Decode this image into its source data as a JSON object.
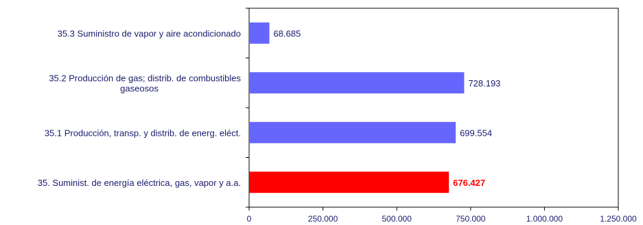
{
  "chart_data": {
    "type": "bar",
    "orientation": "horizontal",
    "categories": [
      "35.3 Suministro de vapor y aire acondicionado",
      "35.2 Producción de gas; distrib. de combustibles gaseosos",
      "35.1 Producción, transp. y distrib. de energ. eléct.",
      "35. Suminist. de energía eléctrica, gas, vapor y a.a."
    ],
    "category_lines": [
      [
        "35.3 Suministro de vapor y aire acondicionado"
      ],
      [
        "35.2 Producción de gas; distrib. de combustibles",
        "gaseosos"
      ],
      [
        "35.1 Producción, transp. y distrib. de energ. eléct."
      ],
      [
        "35. Suminist. de energía eléctrica, gas, vapor y a.a."
      ]
    ],
    "values": [
      68685,
      728193,
      699554,
      676427
    ],
    "value_labels": [
      "68.685",
      "728.193",
      "699.554",
      "676.427"
    ],
    "colors": [
      "#6666ff",
      "#6666ff",
      "#6666ff",
      "#ff0000"
    ],
    "highlight_index": 3,
    "xlim": [
      0,
      1250000
    ],
    "xticks": [
      0,
      250000,
      500000,
      750000,
      1000000,
      1250000
    ],
    "xtick_labels": [
      "0",
      "250.000",
      "500.000",
      "750.000",
      "1.000.000",
      "1.250.000"
    ],
    "title": "",
    "xlabel": "",
    "ylabel": "",
    "grid": false,
    "legend": "none"
  }
}
